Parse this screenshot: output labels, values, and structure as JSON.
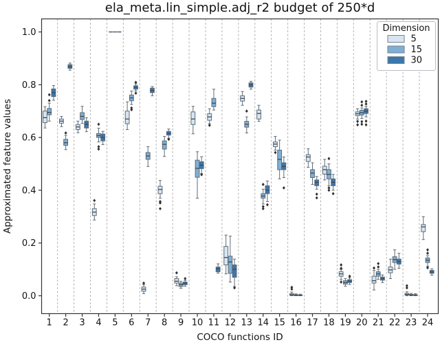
{
  "chart_data": {
    "type": "boxplot",
    "title": "ela_meta.lin_simple.adj_r2 budget of 250*d",
    "xlabel": "COCO functions ID",
    "ylabel": "Approximated feature values",
    "categories": [
      "1",
      "2",
      "3",
      "4",
      "5",
      "6",
      "7",
      "8",
      "9",
      "10",
      "11",
      "12",
      "13",
      "14",
      "15",
      "16",
      "17",
      "18",
      "19",
      "20",
      "21",
      "22",
      "23",
      "24"
    ],
    "yticks": [
      0.0,
      0.2,
      0.4,
      0.6,
      0.8,
      1.0
    ],
    "ytick_labels": [
      "0.0",
      "0.2",
      "0.4",
      "0.6",
      "0.8",
      "1.0"
    ],
    "ylim": [
      -0.045,
      1.07
    ],
    "grid": "vertical dashed separators between function groups",
    "legend": {
      "title": "Dimension",
      "position": "upper right",
      "entries": [
        "5",
        "15",
        "30"
      ]
    },
    "box_format": [
      "median",
      "q1",
      "q3",
      "whisker_low",
      "whisker_high",
      "outliers"
    ],
    "style": {
      "edge": "#5f6b76",
      "median": "#3d4854",
      "flier": "#2f2f2f",
      "grid": "#b3b3b3",
      "spine": "#333333",
      "legend_border": "#b8bec4"
    },
    "series": [
      {
        "name": "5",
        "color": "#d7e5f2",
        "boxes": [
          [
            0.675,
            0.656,
            0.7,
            0.636,
            0.717,
            []
          ],
          [
            0.662,
            0.654,
            0.67,
            0.641,
            0.68,
            []
          ],
          [
            0.64,
            0.63,
            0.649,
            0.618,
            0.662,
            []
          ],
          [
            0.317,
            0.304,
            0.33,
            0.287,
            0.348,
            [
              0.361
            ]
          ],
          [
            1.0,
            1.0,
            1.0,
            1.0,
            1.0,
            []
          ],
          [
            0.67,
            0.652,
            0.7,
            0.63,
            0.735,
            []
          ],
          [
            0.025,
            0.017,
            0.033,
            0.008,
            0.042,
            [
              0.048
            ]
          ],
          [
            0.403,
            0.387,
            0.415,
            0.37,
            0.437,
            [
              0.357,
              0.352,
              0.33
            ]
          ],
          [
            0.055,
            0.048,
            0.065,
            0.038,
            0.072,
            [
              0.087
            ]
          ],
          [
            0.67,
            0.649,
            0.697,
            0.614,
            0.718,
            []
          ],
          [
            0.678,
            0.665,
            0.69,
            0.652,
            0.709,
            [
              0.646
            ]
          ],
          [
            0.145,
            0.117,
            0.187,
            0.083,
            0.23,
            []
          ],
          [
            0.748,
            0.738,
            0.758,
            0.722,
            0.774,
            []
          ],
          [
            0.691,
            0.67,
            0.704,
            0.661,
            0.722,
            []
          ],
          [
            0.575,
            0.565,
            0.583,
            0.552,
            0.604,
            [
              0.543
            ]
          ],
          [
            0.004,
            0.002,
            0.008,
            0.0,
            0.014,
            [
              0.032,
              0.025
            ]
          ],
          [
            0.526,
            0.509,
            0.535,
            0.487,
            0.557,
            []
          ],
          [
            0.478,
            0.461,
            0.491,
            0.439,
            0.517,
            []
          ],
          [
            0.083,
            0.074,
            0.091,
            0.061,
            0.1,
            [
              0.117,
              0.104,
              0.052
            ]
          ],
          [
            0.69,
            0.683,
            0.697,
            0.67,
            0.709,
            [
              0.661,
              0.648
            ]
          ],
          [
            0.057,
            0.048,
            0.074,
            0.022,
            0.096,
            [
              0.105
            ]
          ],
          [
            0.098,
            0.087,
            0.109,
            0.065,
            0.139,
            []
          ],
          [
            0.005,
            0.003,
            0.009,
            0.0,
            0.015,
            [
              0.038,
              0.03
            ]
          ],
          [
            0.261,
            0.243,
            0.27,
            0.213,
            0.3,
            []
          ]
        ]
      },
      {
        "name": "15",
        "color": "#7fafd4",
        "boxes": [
          [
            0.695,
            0.686,
            0.71,
            0.662,
            0.73,
            [
              0.762,
              0.74
            ]
          ],
          [
            0.58,
            0.57,
            0.593,
            0.554,
            0.608,
            [
              0.617
            ]
          ],
          [
            0.68,
            0.668,
            0.694,
            0.653,
            0.718,
            []
          ],
          [
            0.607,
            0.6,
            0.615,
            0.583,
            0.635,
            [
              0.65,
              0.565,
              0.556
            ]
          ],
          [
            1.0,
            1.0,
            1.0,
            1.0,
            1.0,
            []
          ],
          [
            0.75,
            0.739,
            0.761,
            0.725,
            0.776,
            [
              0.712,
              0.705
            ]
          ],
          [
            0.53,
            0.517,
            0.543,
            0.49,
            0.565,
            []
          ],
          [
            0.574,
            0.556,
            0.587,
            0.528,
            0.604,
            []
          ],
          [
            0.042,
            0.035,
            0.048,
            0.028,
            0.055,
            []
          ],
          [
            0.483,
            0.449,
            0.514,
            0.37,
            0.546,
            []
          ],
          [
            0.73,
            0.717,
            0.748,
            0.704,
            0.783,
            []
          ],
          [
            0.128,
            0.085,
            0.15,
            0.052,
            0.226,
            []
          ],
          [
            0.65,
            0.639,
            0.661,
            0.617,
            0.678,
            [
              0.7
            ]
          ],
          [
            0.378,
            0.37,
            0.387,
            0.348,
            0.404,
            [
              0.422,
              0.338,
              0.33
            ]
          ],
          [
            0.517,
            0.478,
            0.552,
            0.443,
            0.59,
            []
          ],
          [
            0.002,
            0.001,
            0.004,
            0.0,
            0.007,
            []
          ],
          [
            0.465,
            0.448,
            0.478,
            0.422,
            0.504,
            []
          ],
          [
            0.46,
            0.443,
            0.478,
            0.417,
            0.5,
            [
              0.52,
              0.409,
              0.4
            ]
          ],
          [
            0.05,
            0.044,
            0.057,
            0.036,
            0.065,
            []
          ],
          [
            0.694,
            0.685,
            0.703,
            0.672,
            0.712,
            [
              0.735,
              0.722,
              0.66,
              0.65
            ]
          ],
          [
            0.083,
            0.074,
            0.091,
            0.062,
            0.1,
            [
              0.122,
              0.109
            ]
          ],
          [
            0.137,
            0.126,
            0.148,
            0.1,
            0.174,
            []
          ],
          [
            0.003,
            0.002,
            0.005,
            0.0,
            0.009,
            []
          ],
          [
            0.135,
            0.126,
            0.143,
            0.112,
            0.152,
            [
              0.174,
              0.161,
              0.106
            ]
          ]
        ]
      },
      {
        "name": "30",
        "color": "#3a77ad",
        "boxes": [
          [
            0.77,
            0.755,
            0.784,
            0.741,
            0.797,
            []
          ],
          [
            0.868,
            0.862,
            0.876,
            0.855,
            0.882,
            []
          ],
          [
            0.65,
            0.636,
            0.662,
            0.622,
            0.675,
            []
          ],
          [
            0.6,
            0.587,
            0.613,
            0.573,
            0.623,
            []
          ],
          [
            1.0,
            1.0,
            1.0,
            1.0,
            1.0,
            []
          ],
          [
            0.79,
            0.783,
            0.796,
            0.776,
            0.803,
            [
              0.809,
              0.768
            ]
          ],
          [
            0.778,
            0.77,
            0.787,
            0.758,
            0.793,
            []
          ],
          [
            0.615,
            0.609,
            0.623,
            0.597,
            0.632,
            [
              0.593
            ]
          ],
          [
            0.047,
            0.042,
            0.052,
            0.036,
            0.058,
            [
              0.065
            ]
          ],
          [
            0.495,
            0.482,
            0.508,
            0.463,
            0.527,
            [
              0.459
            ]
          ],
          [
            0.102,
            0.091,
            0.109,
            0.086,
            0.121,
            []
          ],
          [
            0.1,
            0.07,
            0.117,
            0.035,
            0.139,
            [
              0.03
            ]
          ],
          [
            0.799,
            0.791,
            0.807,
            0.783,
            0.813,
            []
          ],
          [
            0.4,
            0.387,
            0.417,
            0.357,
            0.435,
            [
              0.345
            ]
          ],
          [
            0.49,
            0.478,
            0.504,
            0.448,
            0.526,
            [
              0.409
            ]
          ],
          [
            0.002,
            0.001,
            0.003,
            0.0,
            0.006,
            []
          ],
          [
            0.43,
            0.417,
            0.439,
            0.404,
            0.452,
            [
              0.385,
              0.371
            ]
          ],
          [
            0.43,
            0.417,
            0.443,
            0.4,
            0.46,
            [
              0.387
            ]
          ],
          [
            0.055,
            0.05,
            0.061,
            0.043,
            0.068,
            [
              0.074
            ]
          ],
          [
            0.7,
            0.691,
            0.709,
            0.678,
            0.718,
            [
              0.737,
              0.727,
              0.662,
              0.648
            ]
          ],
          [
            0.065,
            0.059,
            0.071,
            0.05,
            0.079,
            []
          ],
          [
            0.13,
            0.12,
            0.139,
            0.104,
            0.161,
            []
          ],
          [
            0.003,
            0.001,
            0.004,
            0.0,
            0.008,
            []
          ],
          [
            0.09,
            0.085,
            0.096,
            0.078,
            0.102,
            []
          ]
        ]
      }
    ]
  }
}
